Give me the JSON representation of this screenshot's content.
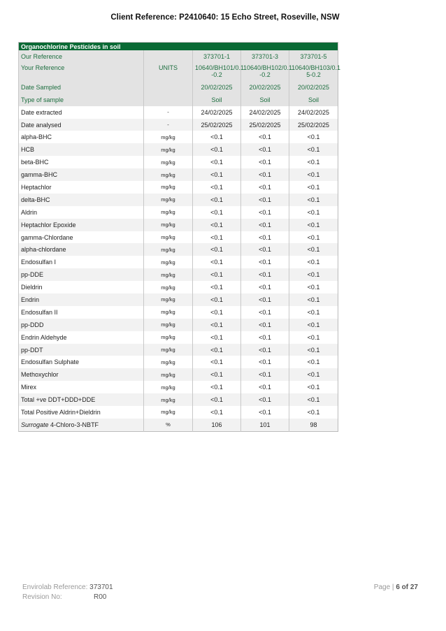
{
  "header": {
    "title": "Client Reference: P2410640: 15 Echo Street, Roseville, NSW"
  },
  "table": {
    "section_title": "Organochlorine Pesticides  in soil",
    "units_header": "UNITS",
    "meta": [
      {
        "label": "Our Reference",
        "values": [
          "373701-1",
          "373701-3",
          "373701-5"
        ]
      },
      {
        "label": "Your Reference",
        "values": [
          "10640/BH101/0.1 -0.2",
          "10640/BH102/0.1 -0.2",
          "10640/BH103/0.1 5-0.2"
        ]
      },
      {
        "label": "Date Sampled",
        "values": [
          "20/02/2025",
          "20/02/2025",
          "20/02/2025"
        ]
      },
      {
        "label": "Type of sample",
        "values": [
          "Soil",
          "Soil",
          "Soil"
        ]
      }
    ],
    "rows": [
      {
        "name": "Date extracted",
        "units": "-",
        "values": [
          "24/02/2025",
          "24/02/2025",
          "24/02/2025"
        ]
      },
      {
        "name": "Date analysed",
        "units": "-",
        "values": [
          "25/02/2025",
          "25/02/2025",
          "25/02/2025"
        ]
      },
      {
        "name": "alpha-BHC",
        "units": "mg/kg",
        "values": [
          "<0.1",
          "<0.1",
          "<0.1"
        ]
      },
      {
        "name": "HCB",
        "units": "mg/kg",
        "values": [
          "<0.1",
          "<0.1",
          "<0.1"
        ]
      },
      {
        "name": "beta-BHC",
        "units": "mg/kg",
        "values": [
          "<0.1",
          "<0.1",
          "<0.1"
        ]
      },
      {
        "name": "gamma-BHC",
        "units": "mg/kg",
        "values": [
          "<0.1",
          "<0.1",
          "<0.1"
        ]
      },
      {
        "name": "Heptachlor",
        "units": "mg/kg",
        "values": [
          "<0.1",
          "<0.1",
          "<0.1"
        ]
      },
      {
        "name": "delta-BHC",
        "units": "mg/kg",
        "values": [
          "<0.1",
          "<0.1",
          "<0.1"
        ]
      },
      {
        "name": "Aldrin",
        "units": "mg/kg",
        "values": [
          "<0.1",
          "<0.1",
          "<0.1"
        ]
      },
      {
        "name": "Heptachlor Epoxide",
        "units": "mg/kg",
        "values": [
          "<0.1",
          "<0.1",
          "<0.1"
        ]
      },
      {
        "name": "gamma-Chlordane",
        "units": "mg/kg",
        "values": [
          "<0.1",
          "<0.1",
          "<0.1"
        ]
      },
      {
        "name": "alpha-chlordane",
        "units": "mg/kg",
        "values": [
          "<0.1",
          "<0.1",
          "<0.1"
        ]
      },
      {
        "name": "Endosulfan I",
        "units": "mg/kg",
        "values": [
          "<0.1",
          "<0.1",
          "<0.1"
        ]
      },
      {
        "name": "pp-DDE",
        "units": "mg/kg",
        "values": [
          "<0.1",
          "<0.1",
          "<0.1"
        ]
      },
      {
        "name": "Dieldrin",
        "units": "mg/kg",
        "values": [
          "<0.1",
          "<0.1",
          "<0.1"
        ]
      },
      {
        "name": "Endrin",
        "units": "mg/kg",
        "values": [
          "<0.1",
          "<0.1",
          "<0.1"
        ]
      },
      {
        "name": "Endosulfan II",
        "units": "mg/kg",
        "values": [
          "<0.1",
          "<0.1",
          "<0.1"
        ]
      },
      {
        "name": "pp-DDD",
        "units": "mg/kg",
        "values": [
          "<0.1",
          "<0.1",
          "<0.1"
        ]
      },
      {
        "name": "Endrin Aldehyde",
        "units": "mg/kg",
        "values": [
          "<0.1",
          "<0.1",
          "<0.1"
        ]
      },
      {
        "name": "pp-DDT",
        "units": "mg/kg",
        "values": [
          "<0.1",
          "<0.1",
          "<0.1"
        ]
      },
      {
        "name": "Endosulfan Sulphate",
        "units": "mg/kg",
        "values": [
          "<0.1",
          "<0.1",
          "<0.1"
        ]
      },
      {
        "name": "Methoxychlor",
        "units": "mg/kg",
        "values": [
          "<0.1",
          "<0.1",
          "<0.1"
        ]
      },
      {
        "name": "Mirex",
        "units": "mg/kg",
        "values": [
          "<0.1",
          "<0.1",
          "<0.1"
        ]
      },
      {
        "name": "Total +ve DDT+DDD+DDE",
        "units": "mg/kg",
        "values": [
          "<0.1",
          "<0.1",
          "<0.1"
        ]
      },
      {
        "name": "Total Positive Aldrin+Dieldrin",
        "units": "mg/kg",
        "values": [
          "<0.1",
          "<0.1",
          "<0.1"
        ]
      },
      {
        "name": "4-Chloro-3-NBTF",
        "prefix_italic": "Surrogate",
        "units": "%",
        "values": [
          "106",
          "101",
          "98"
        ]
      }
    ]
  },
  "footer": {
    "ref_label": "Envirolab Reference:",
    "ref_value": "373701",
    "rev_label": "Revision No:",
    "rev_value": "R00",
    "page_label": "Page |",
    "page_value": "6 of 27"
  },
  "colors": {
    "header_bg": "#0a6a35",
    "meta_text": "#1d6e3f",
    "meta_bg": "#e3e3e3"
  }
}
